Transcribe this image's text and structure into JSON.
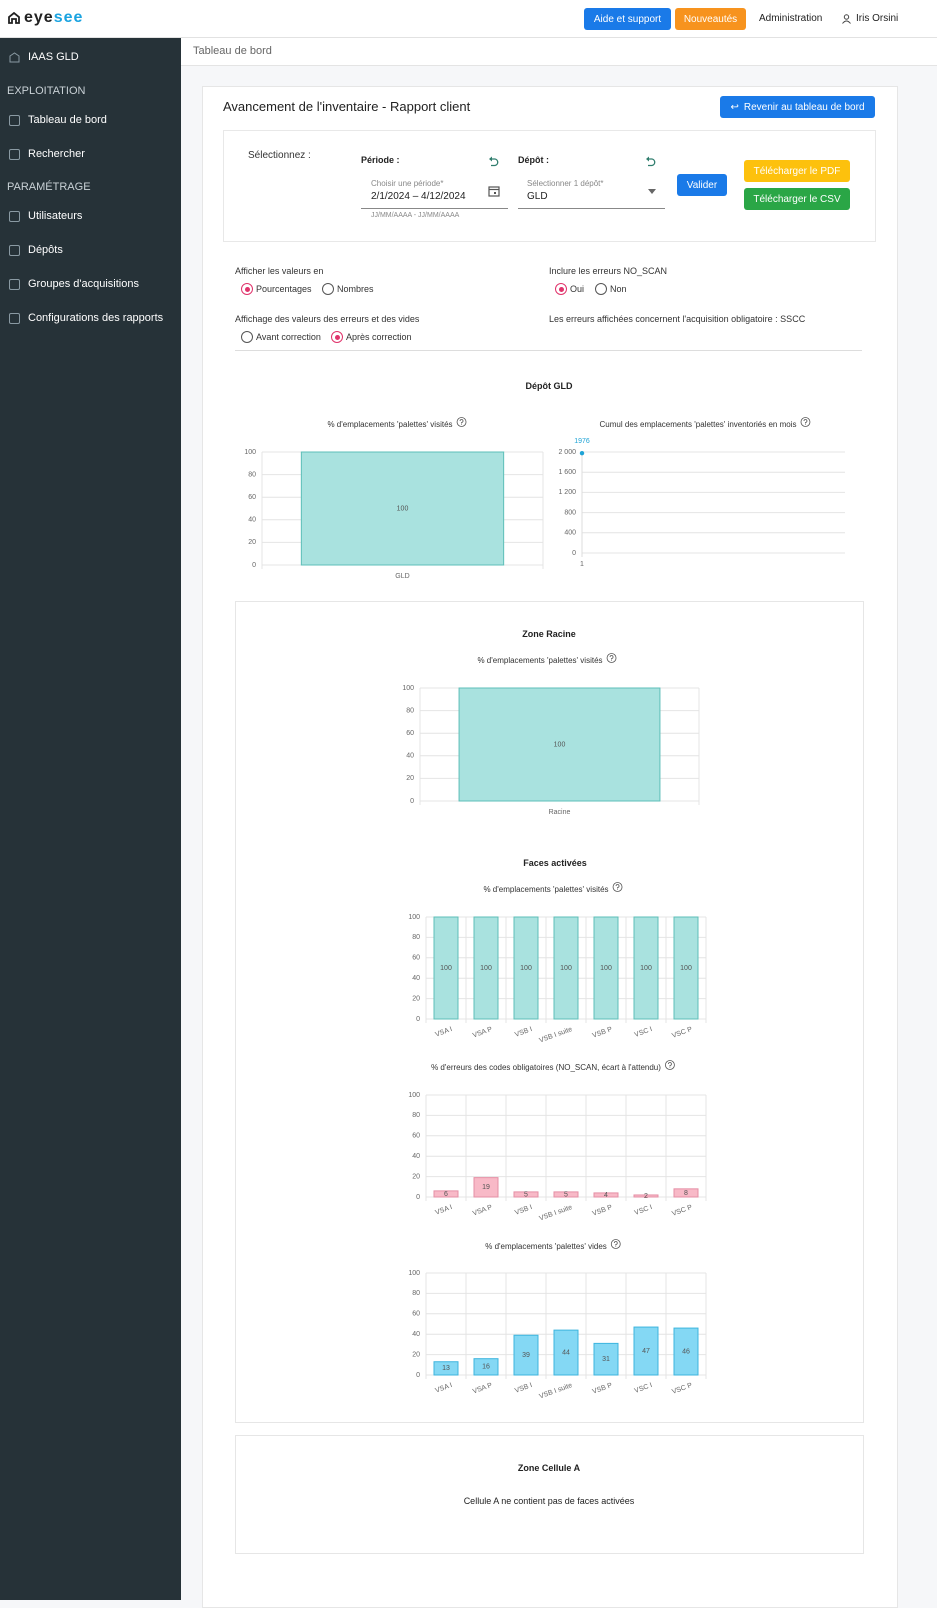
{
  "header": {
    "logo": [
      "eye",
      "see"
    ],
    "help_button": "Aide et support",
    "news_button": "Nouveautés",
    "admin_link": "Administration",
    "user": "Iris Orsini"
  },
  "sidebar": {
    "site": "IAAS GLD",
    "sections": [
      {
        "title": "EXPLOITATION",
        "items": [
          "Tableau de bord",
          "Rechercher"
        ]
      },
      {
        "title": "PARAMÉTRAGE",
        "items": [
          "Utilisateurs",
          "Dépôts",
          "Groupes d'acquisitions",
          "Configurations des rapports"
        ]
      }
    ]
  },
  "breadcrumb": "Tableau de bord",
  "report": {
    "title": "Avancement de l'inventaire - Rapport client",
    "back_button": "Revenir au tableau de bord",
    "filters": {
      "select_label": "Sélectionnez :",
      "period": {
        "label": "Période :",
        "placeholder": "Choisir une période*",
        "value": "2/1/2024 – 4/12/2024",
        "hint": "JJ/MM/AAAA - JJ/MM/AAAA"
      },
      "depot": {
        "label": "Dépôt :",
        "placeholder": "Sélectionner 1 dépôt*",
        "value": "GLD"
      },
      "validate_button": "Valider",
      "pdf_button": "Télécharger le PDF",
      "csv_button": "Télécharger le CSV"
    },
    "options": [
      {
        "label": "Afficher les valeurs en",
        "choices": [
          "Pourcentages",
          "Nombres"
        ],
        "selected": 0
      },
      {
        "label": "Inclure les erreurs NO_SCAN",
        "choices": [
          "Oui",
          "Non"
        ],
        "selected": 0
      },
      {
        "label": "Affichage des valeurs des erreurs et des vides",
        "choices": [
          "Avant correction",
          "Après correction"
        ],
        "selected": 1
      }
    ],
    "note": "Les erreurs affichées concernent l'acquisition obligatoire : SSCC"
  },
  "sections": {
    "depot": "Dépôt GLD",
    "zone_racine": "Zone Racine",
    "faces": "Faces activées",
    "zone_cellule": "Zone Cellule A",
    "empty_message": "Cellule A ne contient pas de faces activées"
  },
  "chart_data": [
    {
      "type": "bar",
      "title": "% d'emplacements 'palettes' visités",
      "categories": [
        "GLD"
      ],
      "values": [
        100
      ],
      "color": "#a9e2df",
      "border_color": "#5dbfb8",
      "ylim": [
        0,
        100
      ],
      "yticks": [
        0,
        20,
        40,
        60,
        80,
        100
      ],
      "grid": true
    },
    {
      "type": "line",
      "title": "Cumul des emplacements 'palettes' inventoriés en mois",
      "categories": [
        "1"
      ],
      "values": [
        1976
      ],
      "color": "#1ea3d6",
      "ylim": [
        0,
        2000
      ],
      "yticks": [
        0,
        400,
        800,
        {
          "value": 1200,
          "label": "1 200"
        },
        {
          "value": 1600,
          "label": "1 600"
        },
        {
          "value": 2000,
          "label": "2 000"
        }
      ],
      "grid": true
    },
    {
      "type": "bar",
      "title": "% d'emplacements 'palettes' visités",
      "categories": [
        "Racine"
      ],
      "values": [
        100
      ],
      "color": "#a9e2df",
      "border_color": "#5dbfb8",
      "ylim": [
        0,
        100
      ],
      "yticks": [
        0,
        20,
        40,
        60,
        80,
        100
      ],
      "grid": true
    },
    {
      "type": "bar",
      "title": "% d'emplacements 'palettes' visités",
      "categories": [
        "VSA I",
        "VSA P",
        "VSB I",
        "VSB I suite",
        "VSB P",
        "VSC I",
        "VSC P"
      ],
      "values": [
        100,
        100,
        100,
        100,
        100,
        100,
        100
      ],
      "color": "#a9e2df",
      "border_color": "#5dbfb8",
      "ylim": [
        0,
        100
      ],
      "yticks": [
        0,
        20,
        40,
        60,
        80,
        100
      ],
      "grid": true
    },
    {
      "type": "bar",
      "title": "% d'erreurs des codes obligatoires (NO_SCAN, écart à l'attendu)",
      "categories": [
        "VSA I",
        "VSA P",
        "VSB I",
        "VSB I suite",
        "VSB P",
        "VSC I",
        "VSC P"
      ],
      "values": [
        6,
        19,
        5,
        5,
        4,
        2,
        8
      ],
      "color": "#f8b9c7",
      "border_color": "#e58fa5",
      "ylim": [
        0,
        100
      ],
      "yticks": [
        0,
        20,
        40,
        60,
        80,
        100
      ],
      "grid": true
    },
    {
      "type": "bar",
      "title": "% d'emplacements 'palettes' vides",
      "categories": [
        "VSA I",
        "VSA P",
        "VSB I",
        "VSB I suite",
        "VSB P",
        "VSC I",
        "VSC P"
      ],
      "values": [
        13,
        16,
        39,
        44,
        31,
        47,
        46
      ],
      "color": "#84d8f4",
      "border_color": "#3db5de",
      "ylim": [
        0,
        100
      ],
      "yticks": [
        0,
        20,
        40,
        60,
        80,
        100
      ],
      "grid": true
    }
  ]
}
